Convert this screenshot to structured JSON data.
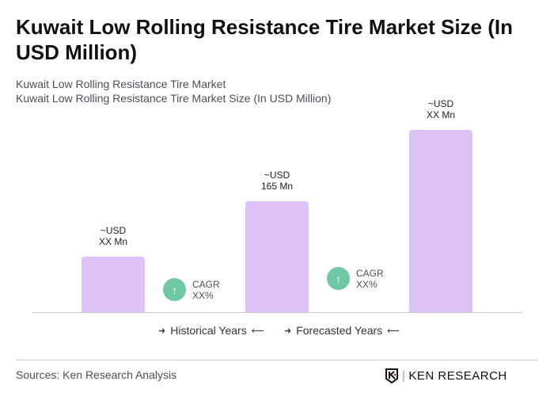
{
  "title": "Kuwait Low Rolling Resistance Tire Market Size (In USD Million)",
  "subtitle1": "Kuwait Low Rolling Resistance Tire Market",
  "subtitle2": "Kuwait Low Rolling Resistance Tire Market Size (In USD Million)",
  "chart_data": {
    "type": "bar",
    "categories": [
      "",
      "",
      ""
    ],
    "values": [
      82.5,
      165,
      271
    ],
    "value_labels": [
      [
        "~USD",
        "XX Mn"
      ],
      [
        "~USD",
        "165 Mn"
      ],
      [
        "~USD",
        "XX Mn"
      ]
    ],
    "bar_color": "#dcc2f7",
    "cagr": [
      {
        "label": "CAGR",
        "value": "XX%"
      },
      {
        "label": "CAGR",
        "value": "XX%"
      }
    ],
    "cagr_color": "#6ec8a2",
    "legend": [
      "Historical Years",
      "Forecasted Years"
    ],
    "grid": false
  },
  "footer": {
    "source": "Sources: Ken Research Analysis",
    "logo": "KEN RESEARCH"
  }
}
